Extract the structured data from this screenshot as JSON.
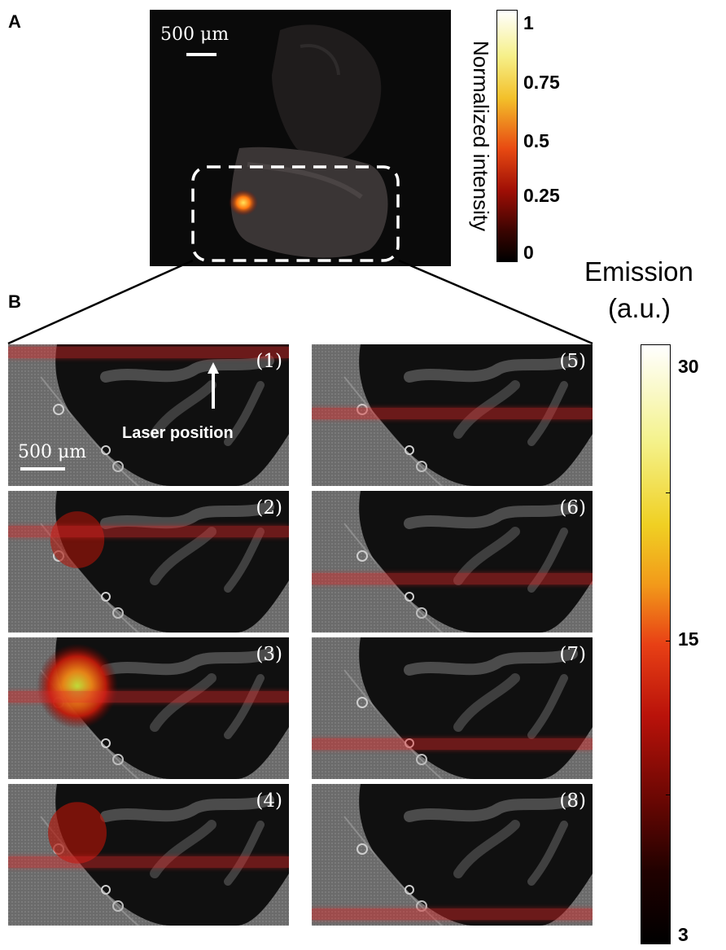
{
  "panel_a": {
    "letter": "A",
    "scale_bar_label": "500 μm",
    "colorbar": {
      "title": "Normalized intensity",
      "ticks": [
        "1",
        "0.75",
        "0.5",
        "0.25",
        "0"
      ]
    }
  },
  "panel_b": {
    "letter": "B",
    "scale_bar_label": "500 μm",
    "laser_annotation": "Laser position",
    "colorbar": {
      "title_line1": "Emission",
      "title_line2": "(a.u.)",
      "ticks": [
        "30",
        "15",
        "3"
      ]
    },
    "frames": [
      {
        "label": "(1)",
        "laser_fraction": 0.06,
        "emission": 0
      },
      {
        "label": "(2)",
        "laser_fraction": 0.29,
        "emission": 0.4
      },
      {
        "label": "(3)",
        "laser_fraction": 0.42,
        "emission": 1.0
      },
      {
        "label": "(4)",
        "laser_fraction": 0.55,
        "emission": 0.5
      },
      {
        "label": "(5)",
        "laser_fraction": 0.49,
        "emission": 0
      },
      {
        "label": "(6)",
        "laser_fraction": 0.62,
        "emission": 0
      },
      {
        "label": "(7)",
        "laser_fraction": 0.75,
        "emission": 0
      },
      {
        "label": "(8)",
        "laser_fraction": 0.92,
        "emission": 0
      }
    ]
  }
}
